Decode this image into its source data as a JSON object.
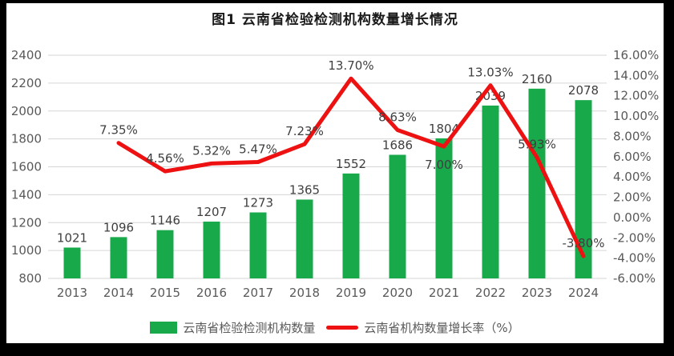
{
  "title": "图1 云南省检验检测机构数量增长情况",
  "chart_data": {
    "type": "combo_bar_line",
    "categories": [
      "2013",
      "2014",
      "2015",
      "2016",
      "2017",
      "2018",
      "2019",
      "2020",
      "2021",
      "2022",
      "2023",
      "2024"
    ],
    "series": [
      {
        "name": "云南省检验检测机构数量",
        "type": "bar",
        "axis": "left",
        "color": "#18a94b",
        "values": [
          1021,
          1096,
          1146,
          1207,
          1273,
          1365,
          1552,
          1686,
          1804,
          2039,
          2160,
          2078
        ],
        "labels": [
          "1021",
          "1096",
          "1146",
          "1207",
          "1273",
          "1365",
          "1552",
          "1686",
          "1804",
          "2039",
          "2160",
          "2078"
        ]
      },
      {
        "name": "云南省机构数量增长率（%）",
        "type": "line",
        "axis": "right",
        "color": "#ee1111",
        "values": [
          null,
          7.35,
          4.56,
          5.32,
          5.47,
          7.23,
          13.7,
          8.63,
          7.0,
          13.03,
          5.93,
          -3.8
        ],
        "labels": [
          null,
          "7.35%",
          "4.56%",
          "5.32%",
          "5.47%",
          "7.23%",
          "13.70%",
          "8.63%",
          "7.00%",
          "13.03%",
          "5.93%",
          "-3.80%"
        ]
      }
    ],
    "left_axis": {
      "min": 800,
      "max": 2400,
      "step": 200,
      "ticks": [
        "800",
        "1000",
        "1200",
        "1400",
        "1600",
        "1800",
        "2000",
        "2200",
        "2400"
      ]
    },
    "right_axis": {
      "min": -6,
      "max": 16,
      "step": 2,
      "ticks": [
        "-6.00%",
        "-4.00%",
        "-2.00%",
        "0.00%",
        "2.00%",
        "4.00%",
        "6.00%",
        "8.00%",
        "10.00%",
        "12.00%",
        "14.00%",
        "16.00%"
      ]
    },
    "grid": true,
    "gridline_color": "#d6d6d6",
    "tick_color": "#595959",
    "legend_position": "bottom"
  }
}
